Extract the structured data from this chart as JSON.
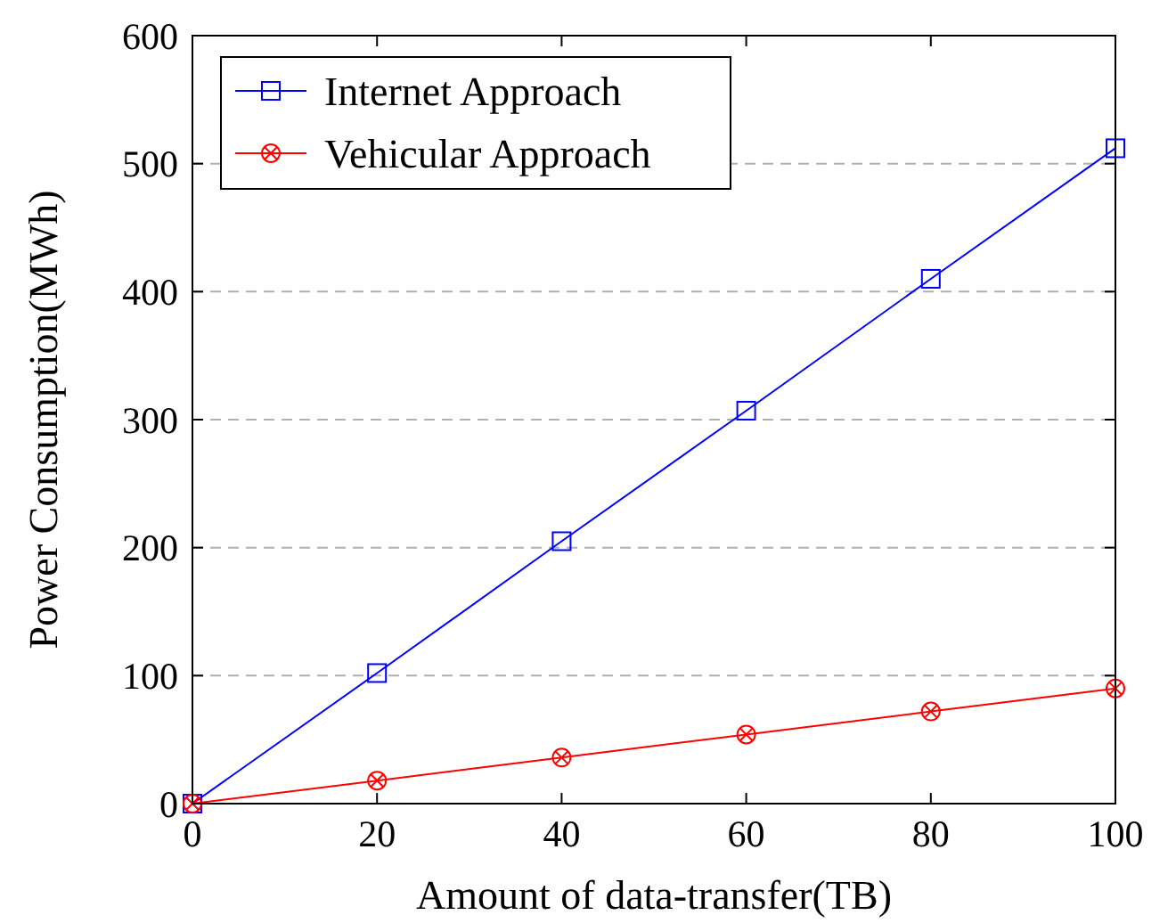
{
  "chart_data": {
    "type": "line",
    "xlabel": "Amount of data-transfer(TB)",
    "ylabel": "Power Consumption(MWh)",
    "x": [
      0,
      20,
      40,
      60,
      80,
      100
    ],
    "series": [
      {
        "name": "Internet Approach",
        "color": "#0000ff",
        "values": [
          0,
          102,
          205,
          307,
          410,
          512
        ],
        "marker": "square"
      },
      {
        "name": "Vehicular Approach",
        "color": "#ff0000",
        "values": [
          0,
          18,
          36,
          54,
          72,
          90
        ],
        "marker": "circle"
      }
    ],
    "xlim": [
      0,
      100
    ],
    "xticks": [
      0,
      20,
      40,
      60,
      80,
      100
    ],
    "ylim": [
      0,
      600
    ],
    "yticks": [
      0,
      100,
      200,
      300,
      400,
      500,
      600
    ],
    "grid": "y",
    "legend": "top left",
    "line_style": "solid"
  }
}
